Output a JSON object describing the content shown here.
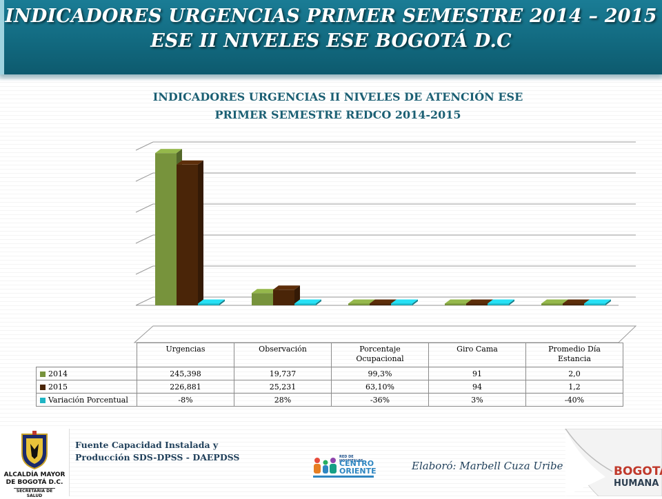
{
  "header": {
    "title_line1": "INDICADORES URGENCIAS PRIMER SEMESTRE 2014 – 2015",
    "title_line2": "ESE II NIVELES ESE BOGOTÁ D.C"
  },
  "chart_data": {
    "type": "bar",
    "title_line1": "INDICADORES URGENCIAS II NIVELES DE ATENCIÓN ESE",
    "title_line2": "PRIMER SEMESTRE REDCO 2014-2015",
    "categories": [
      "Urgencias",
      "Observación",
      "Porcentaje Ocupacional",
      "Giro Cama",
      "Promedio Día Estancia"
    ],
    "category_labels": [
      [
        "Urgencias"
      ],
      [
        "Observación"
      ],
      [
        "Porcentaje",
        "Ocupacional"
      ],
      [
        "Giro Cama"
      ],
      [
        "Promedio Día",
        "Estancia"
      ]
    ],
    "series": [
      {
        "name": "2014",
        "values": [
          245398,
          19737,
          0.993,
          91,
          2.0
        ],
        "labels": [
          "245,398",
          "19,737",
          "99,3%",
          "91",
          "2,0"
        ],
        "color": "#77933c"
      },
      {
        "name": "2015",
        "values": [
          226881,
          25231,
          0.631,
          94,
          1.2
        ],
        "labels": [
          "226,881",
          "25,231",
          "63,10%",
          "94",
          "1,2"
        ],
        "color": "#4a2508"
      },
      {
        "name": "Variación Porcentual",
        "values": [
          -0.08,
          0.28,
          -0.36,
          0.03,
          -0.4
        ],
        "labels": [
          "-8%",
          "28%",
          "-36%",
          "3%",
          "-40%"
        ],
        "color": "#1eb4c4"
      }
    ],
    "ylim": [
      0,
      250000
    ],
    "grid": true,
    "legend": "data-table",
    "three_d": true
  },
  "footer": {
    "source_line1": "Fuente Capacidad Instalada y",
    "source_line2": "Producción SDS-DPSS - DAEPDSS",
    "author": "Elaboró: Marbell Cuza Uribe"
  },
  "logos": {
    "left_line1": "ALCALDÍA MAYOR",
    "left_line2": "DE BOGOTÁ D.C.",
    "left_line3": "SECRETARÍA DE SALUD",
    "mid_line1": "RED DE HOSPITALES",
    "mid_line2": "CENTRO",
    "mid_line3": "ORIENTE",
    "right_line1": "BOGOTÁ",
    "right_line2": "HUMANA"
  },
  "colors": {
    "banner": "#126a80",
    "chart_title": "#1b5f73",
    "footer_text": "#1f3f5a"
  }
}
